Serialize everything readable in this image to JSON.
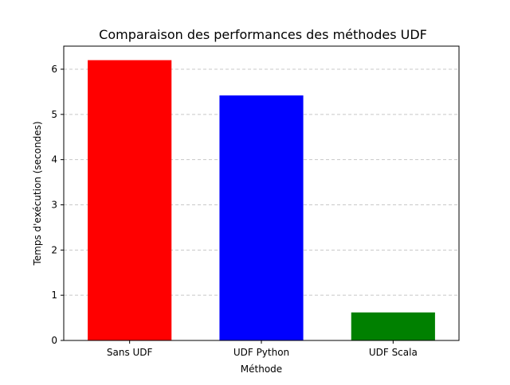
{
  "chart_data": {
    "type": "bar",
    "title": "Comparaison des performances des méthodes UDF",
    "xlabel": "Méthode",
    "ylabel": "Temps d'exécution (secondes)",
    "categories": [
      "Sans UDF",
      "UDF Python",
      "UDF Scala"
    ],
    "values": [
      6.2,
      5.42,
      0.62
    ],
    "colors": [
      "#ff0000",
      "#0000ff",
      "#008000"
    ],
    "ylim": [
      0,
      6.51
    ],
    "yticks": [
      0,
      1,
      2,
      3,
      4,
      5,
      6
    ],
    "grid": "y, dashed",
    "legend": "none"
  }
}
